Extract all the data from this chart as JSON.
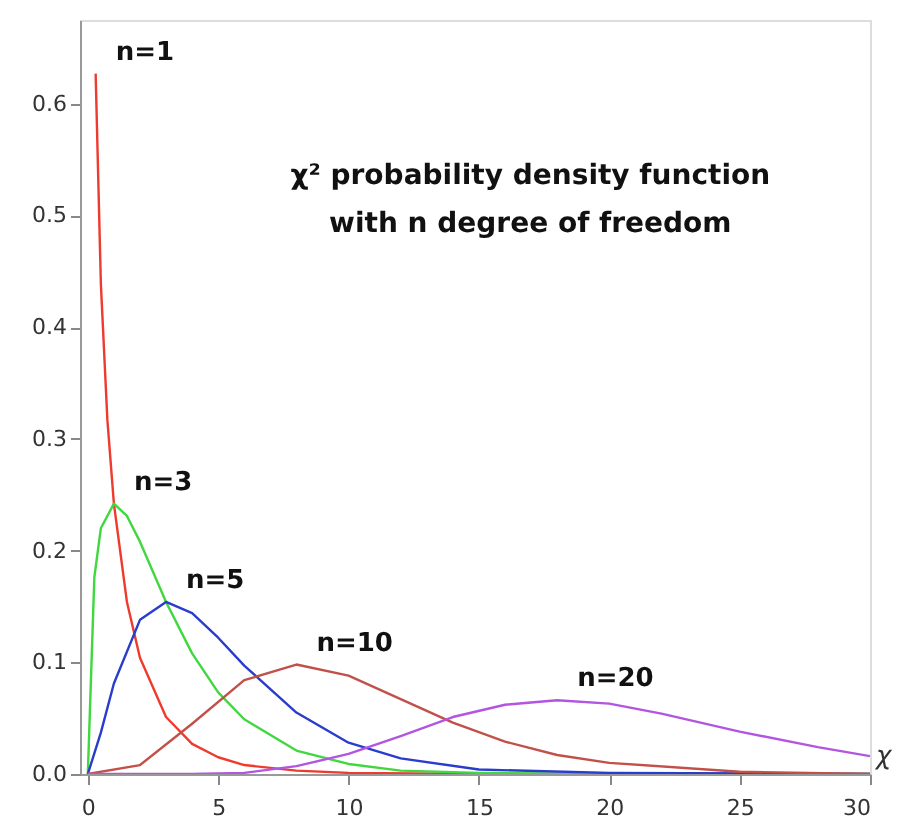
{
  "chart_data": {
    "type": "line",
    "title": "χ² probability density function\nwith n degree of freedom",
    "xlabel": "χ",
    "xlim": [
      -0.3,
      30
    ],
    "xticks": [
      0,
      5,
      10,
      15,
      20,
      25,
      30
    ],
    "ylim": [
      0,
      0.675
    ],
    "yticks": [
      {
        "value": 0,
        "label": "0.0"
      },
      0.1,
      0.2,
      0.3,
      0.4,
      0.5,
      0.6
    ],
    "grid": false,
    "marker": "none",
    "line_style": "solid",
    "series": [
      {
        "name": "n=1",
        "color": "#ee3b2e",
        "x": [
          0.3,
          0.5,
          0.75,
          1,
          1.5,
          2,
          3,
          4,
          5,
          6,
          8,
          10,
          15,
          20,
          30
        ],
        "values": [
          0.627,
          0.439,
          0.317,
          0.242,
          0.154,
          0.104,
          0.051,
          0.027,
          0.015,
          0.008,
          0.003,
          0.001,
          0,
          0,
          0
        ]
      },
      {
        "name": "n=3",
        "color": "#3fd83f",
        "x": [
          0,
          0.25,
          0.5,
          1,
          1.5,
          2,
          3,
          4,
          5,
          6,
          8,
          10,
          12,
          15,
          20,
          30
        ],
        "values": [
          0,
          0.176,
          0.22,
          0.242,
          0.231,
          0.208,
          0.154,
          0.108,
          0.073,
          0.049,
          0.021,
          0.009,
          0.003,
          0.001,
          0,
          0
        ]
      },
      {
        "name": "n=5",
        "color": "#2a3ccc",
        "x": [
          0,
          0.5,
          1,
          2,
          3,
          4,
          5,
          6,
          8,
          10,
          12,
          15,
          20,
          30
        ],
        "values": [
          0,
          0.037,
          0.081,
          0.138,
          0.154,
          0.144,
          0.122,
          0.097,
          0.055,
          0.028,
          0.014,
          0.004,
          0.001,
          0
        ]
      },
      {
        "name": "n=10",
        "color": "#c2504a",
        "x": [
          0,
          2,
          4,
          6,
          8,
          10,
          12,
          14,
          16,
          18,
          20,
          25,
          30
        ],
        "values": [
          0,
          0.008,
          0.045,
          0.084,
          0.098,
          0.088,
          0.067,
          0.046,
          0.029,
          0.017,
          0.01,
          0.002,
          0
        ]
      },
      {
        "name": "n=20",
        "color": "#b255e0",
        "x": [
          0,
          2,
          4,
          6,
          8,
          10,
          12,
          14,
          16,
          18,
          20,
          22,
          25,
          28,
          30
        ],
        "values": [
          0,
          0,
          0,
          0.001,
          0.007,
          0.018,
          0.034,
          0.051,
          0.062,
          0.066,
          0.063,
          0.054,
          0.038,
          0.024,
          0.016
        ]
      }
    ]
  }
}
